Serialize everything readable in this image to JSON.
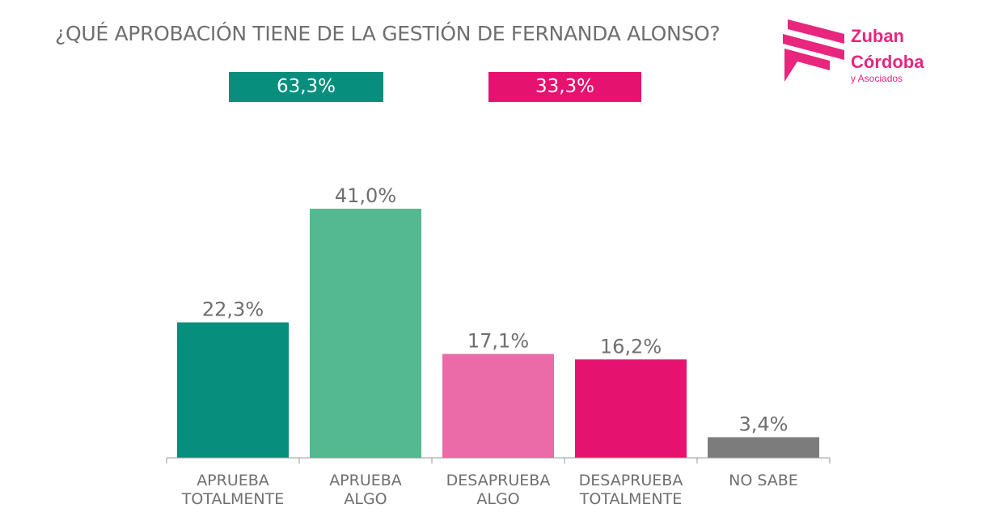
{
  "title": "¿QUÉ APROBACIÓN TIENE DE LA GESTIÓN DE FERNANDA ALONSO?",
  "summary": {
    "approve": {
      "label": "63,3%",
      "color": "#078e7c"
    },
    "disapprove": {
      "label": "33,3%",
      "color": "#e5136f"
    }
  },
  "logo": {
    "line1": "Zuban",
    "line2": "Córdoba",
    "line3": "y Asociados",
    "color": "#e8267e"
  },
  "chart_data": {
    "type": "bar",
    "title": "¿QUÉ APROBACIÓN TIENE DE LA GESTIÓN DE FERNANDA ALONSO?",
    "categories": [
      [
        "APRUEBA",
        "TOTALMENTE"
      ],
      [
        "APRUEBA",
        "ALGO"
      ],
      [
        "DESAPRUEBA",
        "ALGO"
      ],
      [
        "DESAPRUEBA",
        "TOTALMENTE"
      ],
      [
        "NO SABE"
      ]
    ],
    "values": [
      22.3,
      41.0,
      17.1,
      16.2,
      3.4
    ],
    "data_labels": [
      "22,3%",
      "41,0%",
      "17,1%",
      "16,2%",
      "3,4%"
    ],
    "colors": [
      "#078e7c",
      "#54b890",
      "#ea6ba7",
      "#e5136f",
      "#7c7c7c"
    ],
    "ylim": [
      0,
      45
    ],
    "xlabel": "",
    "ylabel": "",
    "grid": false
  }
}
